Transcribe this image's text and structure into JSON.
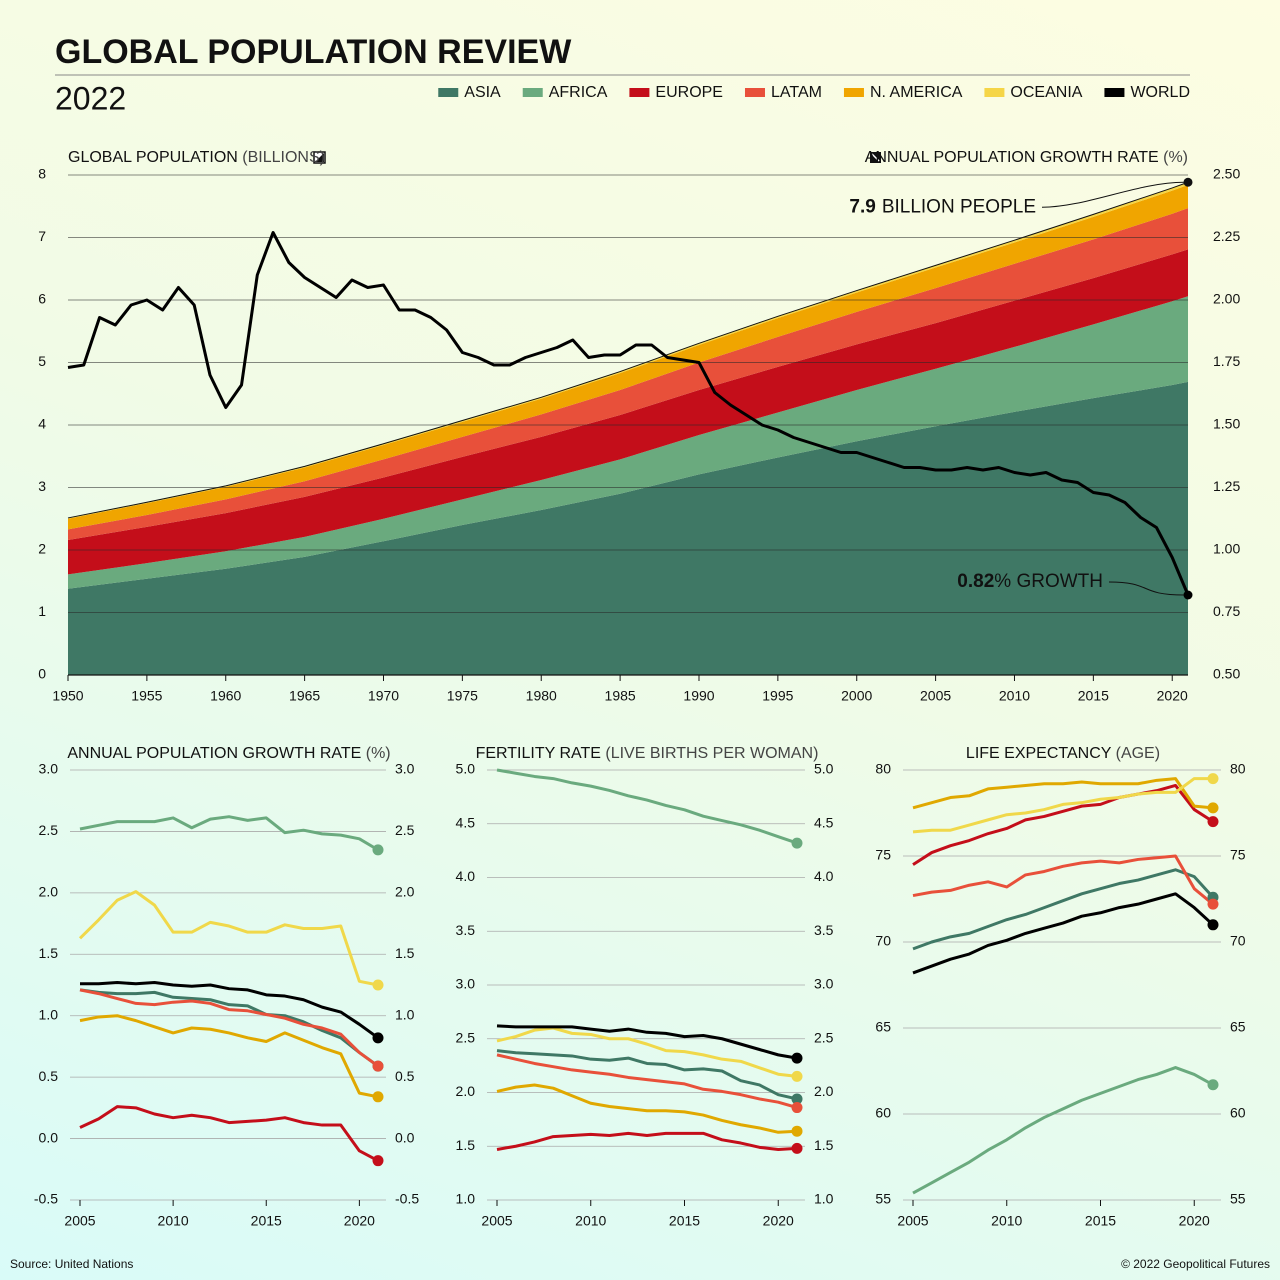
{
  "header": {
    "title": "GLOBAL POPULATION REVIEW",
    "subtitle": "2022"
  },
  "footer": {
    "source": "Source: United Nations",
    "credit": "© 2022 Geopolitical Futures"
  },
  "chart_data": [
    {
      "type": "area",
      "stacked": true,
      "ylabel": "GLOBAL POPULATION",
      "ylabel_unit": "(BILLIONS)",
      "y2label": "ANNUAL POPULATION GROWTH RATE",
      "y2label_unit": "(%)",
      "x": [
        1950,
        1955,
        1960,
        1965,
        1970,
        1975,
        1980,
        1985,
        1990,
        1995,
        2000,
        2005,
        2010,
        2015,
        2020,
        2021
      ],
      "xlim": [
        1950,
        2021
      ],
      "xticks": [
        1950,
        1955,
        1960,
        1965,
        1970,
        1975,
        1980,
        1985,
        1990,
        1995,
        2000,
        2005,
        2010,
        2015,
        2020
      ],
      "ylim": [
        0,
        8
      ],
      "yticks": [
        0,
        1,
        2,
        3,
        4,
        5,
        6,
        7,
        8
      ],
      "y2lim": [
        0.5,
        2.5
      ],
      "y2ticks": [
        {
          "value": 0.5,
          "label": "0.50"
        },
        0.75,
        {
          "value": 1,
          "label": "1.00"
        },
        1.25,
        {
          "value": 1.5,
          "label": "1.50"
        },
        1.75,
        {
          "value": 2,
          "label": "2.00"
        },
        2.25,
        {
          "value": 2.5,
          "label": "2.50"
        }
      ],
      "grid": true,
      "series": [
        {
          "name": "ASIA",
          "color": "#3f7865",
          "values": [
            1.38,
            1.54,
            1.7,
            1.89,
            2.14,
            2.4,
            2.64,
            2.9,
            3.21,
            3.48,
            3.74,
            3.98,
            4.21,
            4.43,
            4.64,
            4.69
          ]
        },
        {
          "name": "AFRICA",
          "color": "#6aaa7e",
          "values": [
            0.23,
            0.25,
            0.28,
            0.32,
            0.36,
            0.41,
            0.48,
            0.55,
            0.63,
            0.72,
            0.82,
            0.92,
            1.04,
            1.18,
            1.34,
            1.37
          ]
        },
        {
          "name": "EUROPE",
          "color": "#c40e1a",
          "values": [
            0.55,
            0.58,
            0.61,
            0.64,
            0.66,
            0.68,
            0.69,
            0.71,
            0.72,
            0.73,
            0.73,
            0.73,
            0.74,
            0.74,
            0.75,
            0.75
          ]
        },
        {
          "name": "LATAM",
          "color": "#e8503a",
          "values": [
            0.17,
            0.19,
            0.22,
            0.25,
            0.29,
            0.32,
            0.36,
            0.4,
            0.44,
            0.48,
            0.52,
            0.56,
            0.59,
            0.62,
            0.65,
            0.66
          ]
        },
        {
          "name": "N. AMERICA",
          "color": "#f0a500",
          "values": [
            0.17,
            0.19,
            0.2,
            0.22,
            0.23,
            0.24,
            0.25,
            0.27,
            0.28,
            0.3,
            0.31,
            0.33,
            0.34,
            0.36,
            0.37,
            0.37
          ]
        },
        {
          "name": "OCEANIA",
          "color": "#f5d547",
          "values": [
            0.013,
            0.014,
            0.016,
            0.018,
            0.02,
            0.022,
            0.023,
            0.025,
            0.027,
            0.029,
            0.031,
            0.034,
            0.037,
            0.04,
            0.043,
            0.044
          ]
        },
        {
          "name": "WORLD",
          "color": "#000000",
          "type": "line",
          "axis": "y2",
          "x": [
            1950,
            1951,
            1952,
            1953,
            1954,
            1955,
            1956,
            1957,
            1958,
            1959,
            1960,
            1961,
            1962,
            1963,
            1964,
            1965,
            1966,
            1967,
            1968,
            1969,
            1970,
            1971,
            1972,
            1973,
            1974,
            1975,
            1976,
            1977,
            1978,
            1979,
            1980,
            1981,
            1982,
            1983,
            1984,
            1985,
            1986,
            1987,
            1988,
            1989,
            1990,
            1991,
            1992,
            1993,
            1994,
            1995,
            1996,
            1997,
            1998,
            1999,
            2000,
            2001,
            2002,
            2003,
            2004,
            2005,
            2006,
            2007,
            2008,
            2009,
            2010,
            2011,
            2012,
            2013,
            2014,
            2015,
            2016,
            2017,
            2018,
            2019,
            2020,
            2021
          ],
          "values": [
            1.73,
            1.74,
            1.93,
            1.9,
            1.98,
            2.0,
            1.96,
            2.05,
            1.98,
            1.7,
            1.57,
            1.66,
            2.1,
            2.27,
            2.15,
            2.09,
            2.05,
            2.01,
            2.08,
            2.05,
            2.06,
            1.96,
            1.96,
            1.93,
            1.88,
            1.79,
            1.77,
            1.74,
            1.74,
            1.77,
            1.79,
            1.81,
            1.84,
            1.77,
            1.78,
            1.78,
            1.82,
            1.82,
            1.77,
            1.76,
            1.75,
            1.63,
            1.58,
            1.54,
            1.5,
            1.48,
            1.45,
            1.43,
            1.41,
            1.39,
            1.39,
            1.37,
            1.35,
            1.33,
            1.33,
            1.32,
            1.32,
            1.33,
            1.32,
            1.33,
            1.31,
            1.3,
            1.31,
            1.28,
            1.27,
            1.23,
            1.22,
            1.19,
            1.13,
            1.09,
            0.97,
            0.82
          ]
        }
      ],
      "annotations": [
        {
          "bold": "7.9",
          "text": "BILLION PEOPLE"
        },
        {
          "bold": "0.82",
          "text": "% GROWTH"
        }
      ]
    },
    {
      "type": "line",
      "title": "ANNUAL POPULATION GROWTH RATE",
      "title_unit": "(%)",
      "x": [
        2005,
        2006,
        2007,
        2008,
        2009,
        2010,
        2011,
        2012,
        2013,
        2014,
        2015,
        2016,
        2017,
        2018,
        2019,
        2020,
        2021
      ],
      "xlim": [
        2005,
        2021
      ],
      "xticks": [
        2005,
        2010,
        2015,
        2020
      ],
      "ylim": [
        -0.5,
        3
      ],
      "yticks": [
        -0.5,
        {
          "value": 0,
          "label": "0.0"
        },
        0.5,
        {
          "value": 1,
          "label": "1.0"
        },
        1.5,
        {
          "value": 2,
          "label": "2.0"
        },
        2.5,
        {
          "value": 3,
          "label": "3.0"
        }
      ],
      "grid": true,
      "series": [
        {
          "color": "#3f7865",
          "values": [
            1.21,
            1.19,
            1.18,
            1.18,
            1.19,
            1.15,
            1.14,
            1.13,
            1.09,
            1.08,
            1.01,
            1.0,
            0.95,
            0.88,
            0.82,
            0.7,
            0.59
          ]
        },
        {
          "color": "#6aaa7e",
          "values": [
            2.52,
            2.55,
            2.58,
            2.58,
            2.58,
            2.61,
            2.53,
            2.6,
            2.62,
            2.59,
            2.61,
            2.49,
            2.51,
            2.48,
            2.47,
            2.44,
            2.35
          ]
        },
        {
          "color": "#c40e1a",
          "values": [
            0.09,
            0.16,
            0.26,
            0.25,
            0.2,
            0.17,
            0.19,
            0.17,
            0.13,
            0.14,
            0.15,
            0.17,
            0.13,
            0.11,
            0.11,
            -0.1,
            -0.18
          ]
        },
        {
          "color": "#e8503a",
          "values": [
            1.21,
            1.18,
            1.14,
            1.1,
            1.09,
            1.11,
            1.12,
            1.1,
            1.05,
            1.04,
            1.01,
            0.98,
            0.93,
            0.9,
            0.85,
            0.7,
            0.59
          ]
        },
        {
          "color": "#e0a800",
          "values": [
            0.96,
            0.99,
            1.0,
            0.96,
            0.91,
            0.86,
            0.9,
            0.89,
            0.86,
            0.82,
            0.79,
            0.86,
            0.8,
            0.74,
            0.69,
            0.37,
            0.34
          ]
        },
        {
          "color": "#f0d84a",
          "values": [
            1.63,
            1.78,
            1.94,
            2.01,
            1.9,
            1.68,
            1.68,
            1.76,
            1.73,
            1.68,
            1.68,
            1.74,
            1.71,
            1.71,
            1.73,
            1.28,
            1.25
          ]
        },
        {
          "color": "#000000",
          "values": [
            1.26,
            1.26,
            1.27,
            1.26,
            1.27,
            1.25,
            1.24,
            1.25,
            1.22,
            1.21,
            1.17,
            1.16,
            1.13,
            1.07,
            1.03,
            0.93,
            0.82
          ]
        }
      ]
    },
    {
      "type": "line",
      "title": "FERTILITY RATE",
      "title_unit": "(LIVE BIRTHS PER WOMAN)",
      "x": [
        2005,
        2006,
        2007,
        2008,
        2009,
        2010,
        2011,
        2012,
        2013,
        2014,
        2015,
        2016,
        2017,
        2018,
        2019,
        2020,
        2021
      ],
      "xlim": [
        2005,
        2021
      ],
      "xticks": [
        2005,
        2010,
        2015,
        2020
      ],
      "ylim": [
        1,
        5
      ],
      "yticks": [
        {
          "value": 1,
          "label": "1.0"
        },
        1.5,
        {
          "value": 2,
          "label": "2.0"
        },
        2.5,
        {
          "value": 3,
          "label": "3.0"
        },
        3.5,
        {
          "value": 4,
          "label": "4.0"
        },
        4.5,
        {
          "value": 5,
          "label": "5.0"
        }
      ],
      "grid": true,
      "series": [
        {
          "color": "#3f7865",
          "values": [
            2.39,
            2.37,
            2.36,
            2.35,
            2.34,
            2.31,
            2.3,
            2.32,
            2.27,
            2.26,
            2.21,
            2.22,
            2.2,
            2.11,
            2.07,
            1.98,
            1.94
          ]
        },
        {
          "color": "#6aaa7e",
          "values": [
            5.0,
            4.97,
            4.94,
            4.92,
            4.88,
            4.85,
            4.81,
            4.76,
            4.72,
            4.67,
            4.63,
            4.57,
            4.53,
            4.49,
            4.44,
            4.38,
            4.32
          ]
        },
        {
          "color": "#c40e1a",
          "values": [
            1.47,
            1.5,
            1.54,
            1.59,
            1.6,
            1.61,
            1.6,
            1.62,
            1.6,
            1.62,
            1.62,
            1.62,
            1.56,
            1.53,
            1.49,
            1.47,
            1.48
          ]
        },
        {
          "color": "#e8503a",
          "values": [
            2.35,
            2.31,
            2.27,
            2.24,
            2.21,
            2.19,
            2.17,
            2.14,
            2.12,
            2.1,
            2.08,
            2.03,
            2.01,
            1.98,
            1.94,
            1.91,
            1.86
          ]
        },
        {
          "color": "#e0a800",
          "values": [
            2.01,
            2.05,
            2.07,
            2.04,
            1.97,
            1.9,
            1.87,
            1.85,
            1.83,
            1.83,
            1.82,
            1.79,
            1.74,
            1.7,
            1.67,
            1.63,
            1.64
          ]
        },
        {
          "color": "#f0d84a",
          "values": [
            2.48,
            2.52,
            2.58,
            2.6,
            2.55,
            2.54,
            2.5,
            2.5,
            2.45,
            2.39,
            2.38,
            2.35,
            2.31,
            2.29,
            2.23,
            2.17,
            2.15
          ]
        },
        {
          "color": "#000000",
          "values": [
            2.62,
            2.61,
            2.61,
            2.61,
            2.61,
            2.59,
            2.57,
            2.59,
            2.56,
            2.55,
            2.52,
            2.53,
            2.5,
            2.45,
            2.4,
            2.35,
            2.32
          ]
        }
      ]
    },
    {
      "type": "line",
      "title": "LIFE EXPECTANCY",
      "title_unit": "(AGE)",
      "x": [
        2005,
        2006,
        2007,
        2008,
        2009,
        2010,
        2011,
        2012,
        2013,
        2014,
        2015,
        2016,
        2017,
        2018,
        2019,
        2020,
        2021
      ],
      "xlim": [
        2005,
        2021
      ],
      "xticks": [
        2005,
        2010,
        2015,
        2020
      ],
      "ylim": [
        55,
        80
      ],
      "yticks": [
        55,
        60,
        65,
        70,
        75,
        80
      ],
      "grid": true,
      "series": [
        {
          "color": "#3f7865",
          "values": [
            69.6,
            70.0,
            70.3,
            70.5,
            70.9,
            71.3,
            71.6,
            72.0,
            72.4,
            72.8,
            73.1,
            73.4,
            73.6,
            73.9,
            74.2,
            73.8,
            72.6
          ]
        },
        {
          "color": "#6aaa7e",
          "values": [
            55.4,
            56.0,
            56.6,
            57.2,
            57.9,
            58.5,
            59.2,
            59.8,
            60.3,
            60.8,
            61.2,
            61.6,
            62.0,
            62.3,
            62.7,
            62.3,
            61.7
          ]
        },
        {
          "color": "#c40e1a",
          "values": [
            74.5,
            75.2,
            75.6,
            75.9,
            76.3,
            76.6,
            77.1,
            77.3,
            77.6,
            77.9,
            78.0,
            78.4,
            78.6,
            78.8,
            79.1,
            77.7,
            77.0
          ]
        },
        {
          "color": "#e8503a",
          "values": [
            72.7,
            72.9,
            73.0,
            73.3,
            73.5,
            73.2,
            73.9,
            74.1,
            74.4,
            74.6,
            74.7,
            74.6,
            74.8,
            74.9,
            75.0,
            73.1,
            72.2
          ]
        },
        {
          "color": "#e0a800",
          "values": [
            77.8,
            78.1,
            78.4,
            78.5,
            78.9,
            79.0,
            79.1,
            79.2,
            79.2,
            79.3,
            79.2,
            79.2,
            79.2,
            79.4,
            79.5,
            77.9,
            77.8
          ]
        },
        {
          "color": "#f0d84a",
          "values": [
            76.4,
            76.5,
            76.5,
            76.8,
            77.1,
            77.4,
            77.5,
            77.7,
            78.0,
            78.1,
            78.3,
            78.4,
            78.6,
            78.7,
            78.7,
            79.5,
            79.5
          ]
        },
        {
          "color": "#000000",
          "values": [
            68.2,
            68.6,
            69.0,
            69.3,
            69.8,
            70.1,
            70.5,
            70.8,
            71.1,
            71.5,
            71.7,
            72.0,
            72.2,
            72.5,
            72.8,
            72.0,
            71.0
          ]
        }
      ]
    }
  ]
}
